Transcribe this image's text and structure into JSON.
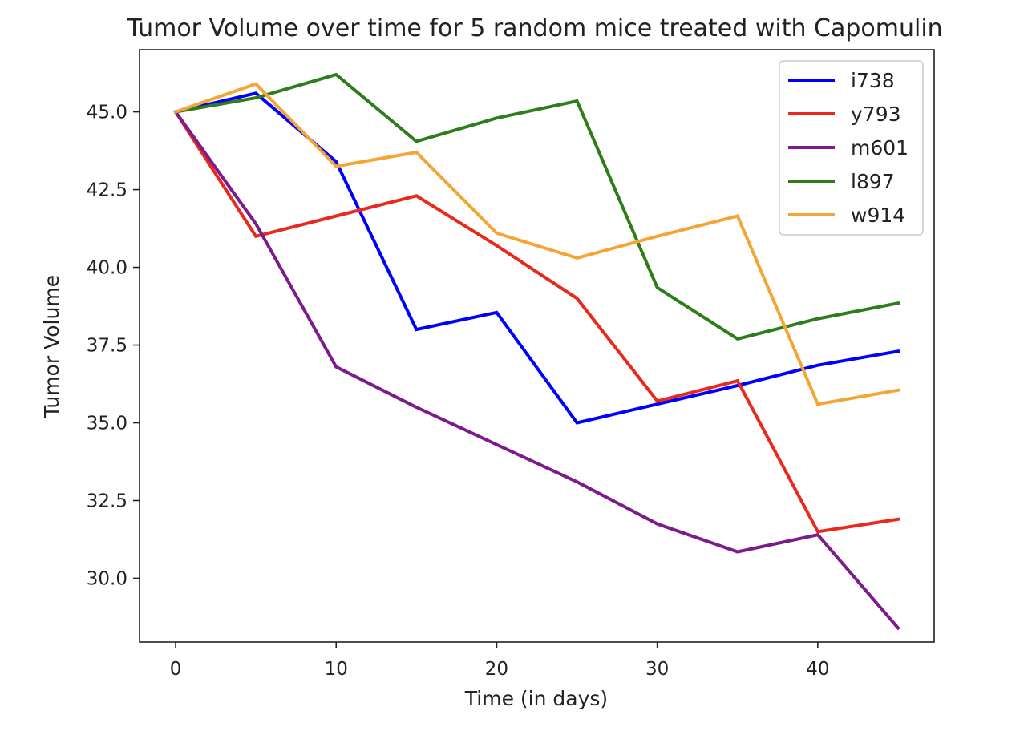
{
  "chart_data": {
    "type": "line",
    "title": "Tumor Volume over time for 5 random mice treated with Capomulin",
    "xlabel": "Time (in days)",
    "ylabel": "Tumor Volume",
    "x": [
      0,
      5,
      10,
      15,
      20,
      25,
      30,
      35,
      40,
      45
    ],
    "xlim": [
      -2.25,
      47.25
    ],
    "ylim": [
      27.95,
      47.0
    ],
    "xticks": [
      0,
      10,
      20,
      30,
      40
    ],
    "yticks": [
      30.0,
      32.5,
      35.0,
      37.5,
      40.0,
      42.5,
      45.0
    ],
    "xtick_labels": [
      "0",
      "10",
      "20",
      "30",
      "40"
    ],
    "ytick_labels": [
      "30.0",
      "32.5",
      "35.0",
      "37.5",
      "40.0",
      "42.5",
      "45.0"
    ],
    "grid": false,
    "legend_position": "top-right",
    "series": [
      {
        "name": "i738",
        "color": "#0000ff",
        "values": [
          45.0,
          45.6,
          43.4,
          38.0,
          38.55,
          35.0,
          35.6,
          36.2,
          36.85,
          37.3
        ]
      },
      {
        "name": "y793",
        "color": "#e8291c",
        "values": [
          45.0,
          41.0,
          41.65,
          42.3,
          40.7,
          39.0,
          35.7,
          36.35,
          31.5,
          31.9
        ]
      },
      {
        "name": "m601",
        "color": "#7b1c8a",
        "values": [
          45.0,
          41.4,
          36.8,
          35.5,
          34.3,
          33.1,
          31.75,
          30.85,
          31.4,
          28.4
        ]
      },
      {
        "name": "l897",
        "color": "#2e7d1a",
        "values": [
          45.0,
          45.45,
          46.2,
          44.05,
          44.8,
          45.35,
          39.35,
          37.7,
          38.35,
          38.85
        ]
      },
      {
        "name": "w914",
        "color": "#f5a536",
        "values": [
          45.0,
          45.9,
          43.25,
          43.7,
          41.1,
          40.3,
          41.0,
          41.65,
          35.6,
          36.05
        ]
      }
    ]
  }
}
